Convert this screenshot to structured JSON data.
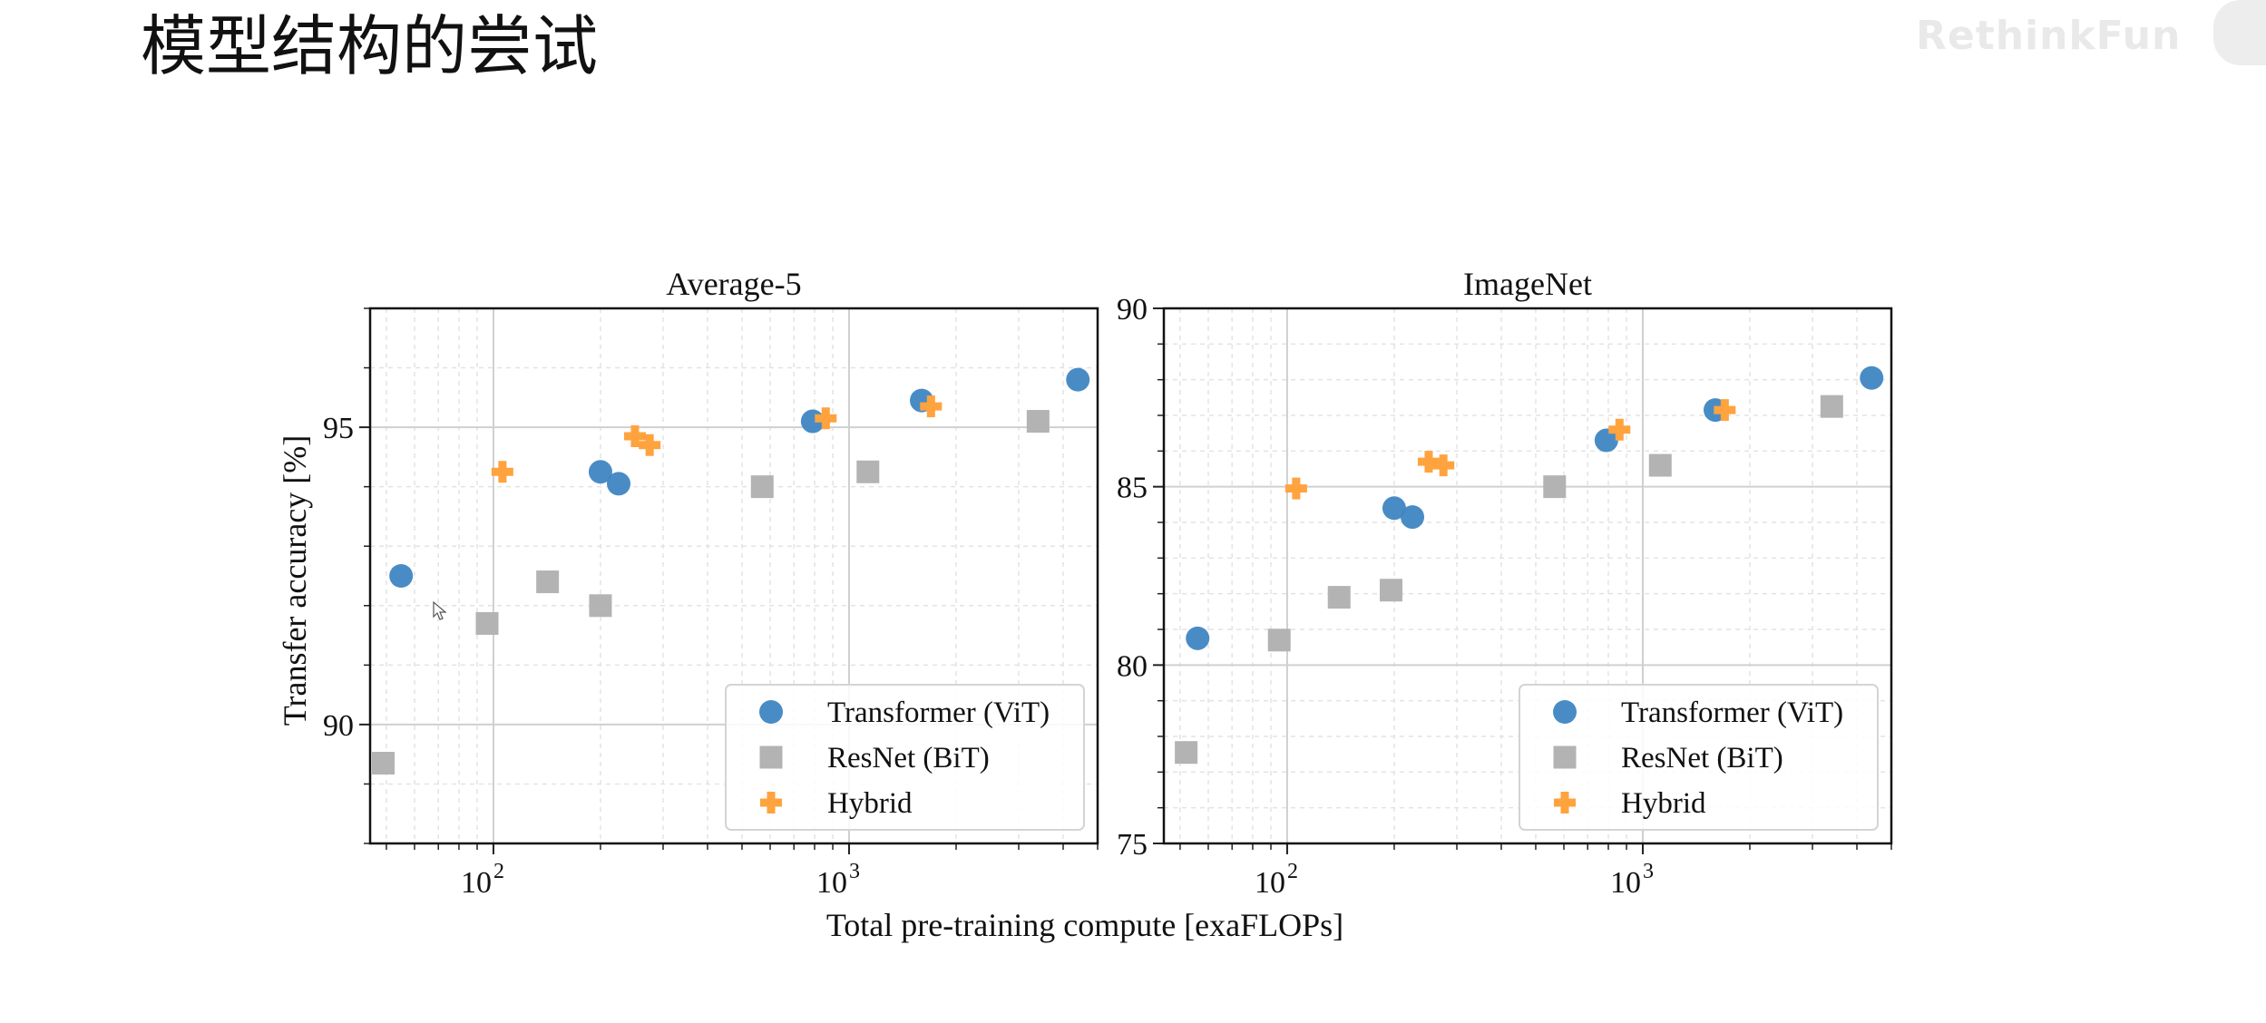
{
  "slide": {
    "title": "模型结构的尝试",
    "watermark": "RethinkFun"
  },
  "colors": {
    "vit": "#3f86c2",
    "bit": "#b3b3b3",
    "hybrid": "#ffa33f",
    "grid": "#d0d0d0"
  },
  "icons": {
    "vit": "circle-marker",
    "bit": "square-marker",
    "hybrid": "plus-marker"
  },
  "shared": {
    "xlabel": "Total pre-training compute [exaFLOPs]",
    "ylabel": "Transfer accuracy [%]",
    "x_scale": "log",
    "xlim": [
      45,
      5000
    ],
    "x_ticks": [
      {
        "value": 100,
        "base": "10",
        "exp": "2"
      },
      {
        "value": 1000,
        "base": "10",
        "exp": "3"
      }
    ],
    "legend": [
      "Transformer (ViT)",
      "ResNet (BiT)",
      "Hybrid"
    ],
    "legend_position": "lower-right",
    "grid": true
  },
  "chart_data": [
    {
      "type": "scatter",
      "title": "Average-5",
      "ylim": [
        88,
        97
      ],
      "y_ticks": [
        90,
        95
      ],
      "series": [
        {
          "name": "Transformer (ViT)",
          "marker": "circle",
          "x": [
            55,
            200,
            225,
            790,
            1600,
            4400
          ],
          "y": [
            92.5,
            94.25,
            94.05,
            95.1,
            95.45,
            95.8
          ]
        },
        {
          "name": "ResNet (BiT)",
          "marker": "square",
          "x": [
            49,
            96,
            142,
            200,
            570,
            1130,
            3400
          ],
          "y": [
            89.35,
            91.7,
            92.4,
            92.0,
            94.0,
            94.25,
            95.1
          ]
        },
        {
          "name": "Hybrid",
          "marker": "plus",
          "x": [
            106,
            250,
            275,
            860,
            1700
          ],
          "y": [
            94.25,
            94.85,
            94.7,
            95.15,
            95.35
          ]
        }
      ]
    },
    {
      "type": "scatter",
      "title": "ImageNet",
      "ylim": [
        75,
        90
      ],
      "y_ticks": [
        75,
        80,
        85,
        90
      ],
      "series": [
        {
          "name": "Transformer (ViT)",
          "marker": "circle",
          "x": [
            56,
            200,
            225,
            790,
            1600,
            4400
          ],
          "y": [
            80.75,
            84.4,
            84.15,
            86.3,
            87.15,
            88.05
          ]
        },
        {
          "name": "ResNet (BiT)",
          "marker": "square",
          "x": [
            52,
            95,
            140,
            196,
            565,
            1120,
            3400
          ],
          "y": [
            77.55,
            80.7,
            81.9,
            82.1,
            85.0,
            85.6,
            87.25
          ]
        },
        {
          "name": "Hybrid",
          "marker": "plus",
          "x": [
            106,
            250,
            275,
            860,
            1700
          ],
          "y": [
            84.95,
            85.7,
            85.6,
            86.6,
            87.15
          ]
        }
      ]
    }
  ]
}
